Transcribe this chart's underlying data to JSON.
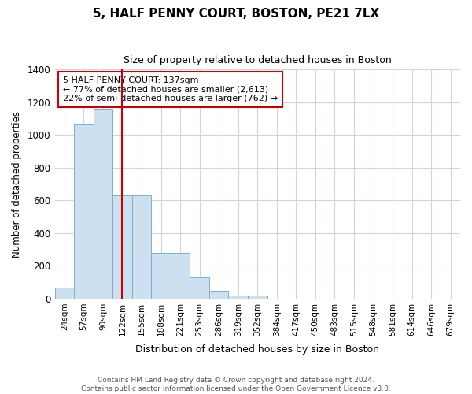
{
  "title": "5, HALF PENNY COURT, BOSTON, PE21 7LX",
  "subtitle": "Size of property relative to detached houses in Boston",
  "xlabel": "Distribution of detached houses by size in Boston",
  "ylabel": "Number of detached properties",
  "annotation_line1": "5 HALF PENNY COURT: 137sqm",
  "annotation_line2": "← 77% of detached houses are smaller (2,613)",
  "annotation_line3": "22% of semi-detached houses are larger (762) →",
  "bar_color": "#cde0f0",
  "bar_edge_color": "#7aafd4",
  "vline_color": "#cc0000",
  "background_color": "#ffffff",
  "grid_color": "#ccd6e0",
  "annotation_box_color": "#ffffff",
  "annotation_box_edge": "#cc0000",
  "categories": [
    "24sqm",
    "57sqm",
    "90sqm",
    "122sqm",
    "155sqm",
    "188sqm",
    "221sqm",
    "253sqm",
    "286sqm",
    "319sqm",
    "352sqm",
    "384sqm",
    "417sqm",
    "450sqm",
    "483sqm",
    "515sqm",
    "548sqm",
    "581sqm",
    "614sqm",
    "646sqm",
    "679sqm"
  ],
  "values": [
    65,
    1070,
    1160,
    630,
    630,
    280,
    280,
    130,
    50,
    20,
    20,
    0,
    0,
    0,
    0,
    0,
    0,
    0,
    0,
    0,
    0
  ],
  "ylim": [
    0,
    1400
  ],
  "yticks": [
    0,
    200,
    400,
    600,
    800,
    1000,
    1200,
    1400
  ],
  "vline_x_index": 3.0,
  "footnote": "Contains HM Land Registry data © Crown copyright and database right 2024.\nContains public sector information licensed under the Open Government Licence v3.0."
}
